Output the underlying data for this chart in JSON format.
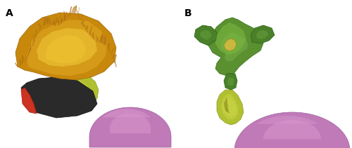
{
  "figure_width": 5.0,
  "figure_height": 2.11,
  "dpi": 100,
  "background_color": "#ffffff",
  "label_A": "A",
  "label_B": "B",
  "label_fontsize": 10,
  "label_color": "#000000"
}
